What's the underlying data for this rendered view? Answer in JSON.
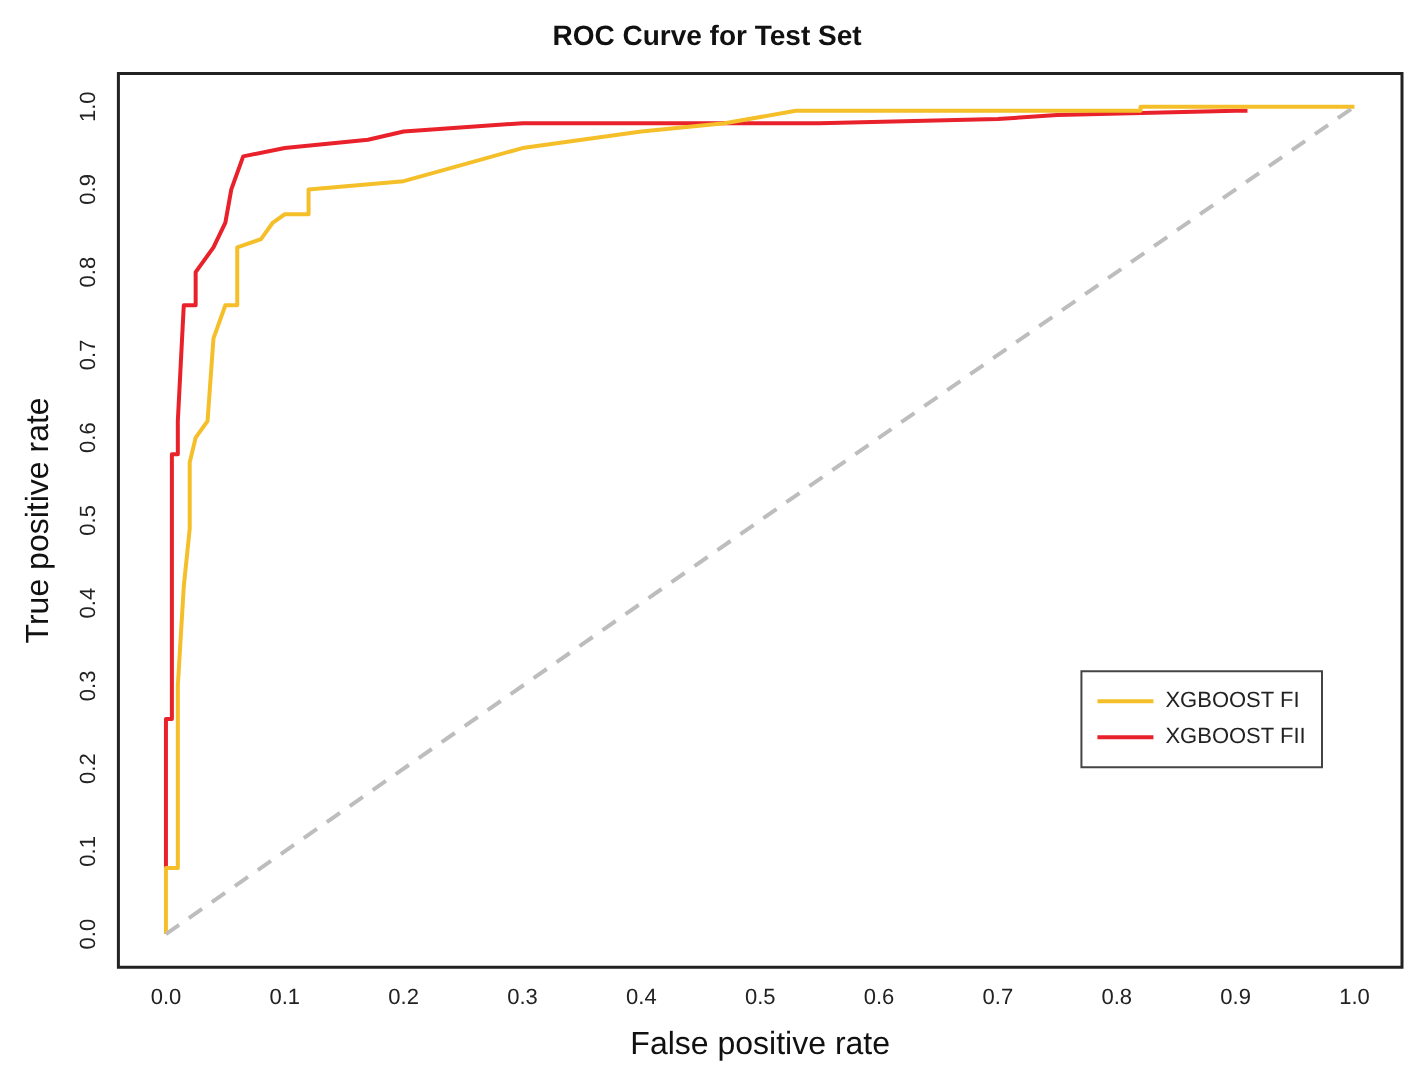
{
  "chart_data": {
    "type": "line",
    "title": "ROC Curve for Test Set",
    "xlabel": "False positive rate",
    "ylabel": "True positive rate",
    "xlim": [
      -0.04,
      1.04
    ],
    "ylim": [
      -0.04,
      1.04
    ],
    "xticks": [
      "0.0",
      0.1,
      0.2,
      0.3,
      0.4,
      0.5,
      0.6,
      0.7,
      0.8,
      0.9,
      "1.0"
    ],
    "yticks": [
      "0.0",
      0.1,
      0.2,
      0.3,
      0.4,
      0.5,
      0.6,
      0.7,
      0.8,
      0.9,
      "1.0"
    ],
    "grid": false,
    "legend": "bottom right",
    "marker": "none",
    "series": [
      {
        "type": "line",
        "color": "#bdbdbd",
        "line_style": "dashed",
        "x": [
          0,
          1
        ],
        "values": [
          0,
          1
        ]
      },
      {
        "name": "XGBOOST FI",
        "color": "#f5bf2a",
        "line_style": "solid",
        "x": [
          0,
          0,
          0.01,
          0.01,
          0.015,
          0.02,
          0.02,
          0.025,
          0.035,
          0.04,
          0.05,
          0.06,
          0.06,
          0.08,
          0.09,
          0.1,
          0.12,
          0.12,
          0.2,
          0.25,
          0.3,
          0.4,
          0.47,
          0.53,
          0.82,
          0.82,
          1
        ],
        "values": [
          0,
          0.08,
          0.08,
          0.3,
          0.42,
          0.49,
          0.57,
          0.6,
          0.62,
          0.72,
          0.76,
          0.76,
          0.83,
          0.84,
          0.86,
          0.87,
          0.87,
          0.9,
          0.91,
          0.93,
          0.95,
          0.97,
          0.98,
          0.995,
          0.995,
          1,
          1
        ]
      },
      {
        "name": "XGBOOST FII",
        "color": "#e8212b",
        "line_style": "solid",
        "x": [
          0,
          0,
          0.005,
          0.005,
          0.01,
          0.01,
          0.015,
          0.025,
          0.025,
          0.03,
          0.04,
          0.05,
          0.055,
          0.065,
          0.1,
          0.17,
          0.2,
          0.3,
          0.55,
          0.7,
          0.75,
          0.9,
          0.91
        ],
        "values": [
          0.08,
          0.26,
          0.26,
          0.58,
          0.58,
          0.62,
          0.76,
          0.76,
          0.8,
          0.81,
          0.83,
          0.86,
          0.9,
          0.94,
          0.95,
          0.96,
          0.97,
          0.98,
          0.98,
          0.985,
          0.99,
          0.995,
          0.995
        ]
      }
    ]
  }
}
